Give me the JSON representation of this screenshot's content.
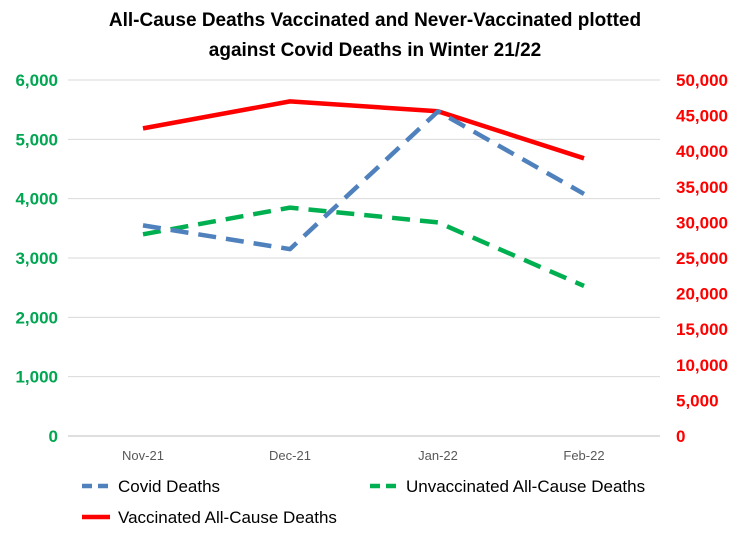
{
  "chart_data": {
    "type": "line",
    "title_lines": [
      "All-Cause Deaths Vaccinated and Never-Vaccinated plotted",
      "against Covid Deaths in Winter 21/22"
    ],
    "categories": [
      "Nov-21",
      "Dec-21",
      "Jan-22",
      "Feb-22"
    ],
    "y_left": {
      "ylim": [
        0,
        6000
      ],
      "ticks": [
        0,
        1000,
        2000,
        3000,
        4000,
        5000,
        6000
      ],
      "tick_labels": [
        "0",
        "1,000",
        "2,000",
        "3,000",
        "4,000",
        "5,000",
        "6,000"
      ],
      "color": "#00a651"
    },
    "y_right": {
      "ylim": [
        0,
        50000
      ],
      "ticks": [
        0,
        5000,
        10000,
        15000,
        20000,
        25000,
        30000,
        35000,
        40000,
        45000,
        50000
      ],
      "tick_labels": [
        "0",
        "5,000",
        "10,000",
        "15,000",
        "20,000",
        "25,000",
        "30,000",
        "35,000",
        "40,000",
        "45,000",
        "50,000"
      ],
      "color": "#ff0000"
    },
    "series": [
      {
        "name": "Covid Deaths",
        "axis": "left",
        "color": "#4f81bd",
        "dash": "dashed",
        "values": [
          3550,
          3150,
          5470,
          4080
        ]
      },
      {
        "name": "Unvaccinated All-Cause Deaths",
        "axis": "left",
        "color": "#00b050",
        "dash": "dashed",
        "values": [
          3400,
          3850,
          3600,
          2530
        ]
      },
      {
        "name": "Vaccinated All-Cause Deaths",
        "axis": "right",
        "color": "#ff0000",
        "dash": "solid",
        "values": [
          43200,
          47000,
          45600,
          39000
        ]
      }
    ],
    "grid": true,
    "legend_position": "bottom"
  }
}
